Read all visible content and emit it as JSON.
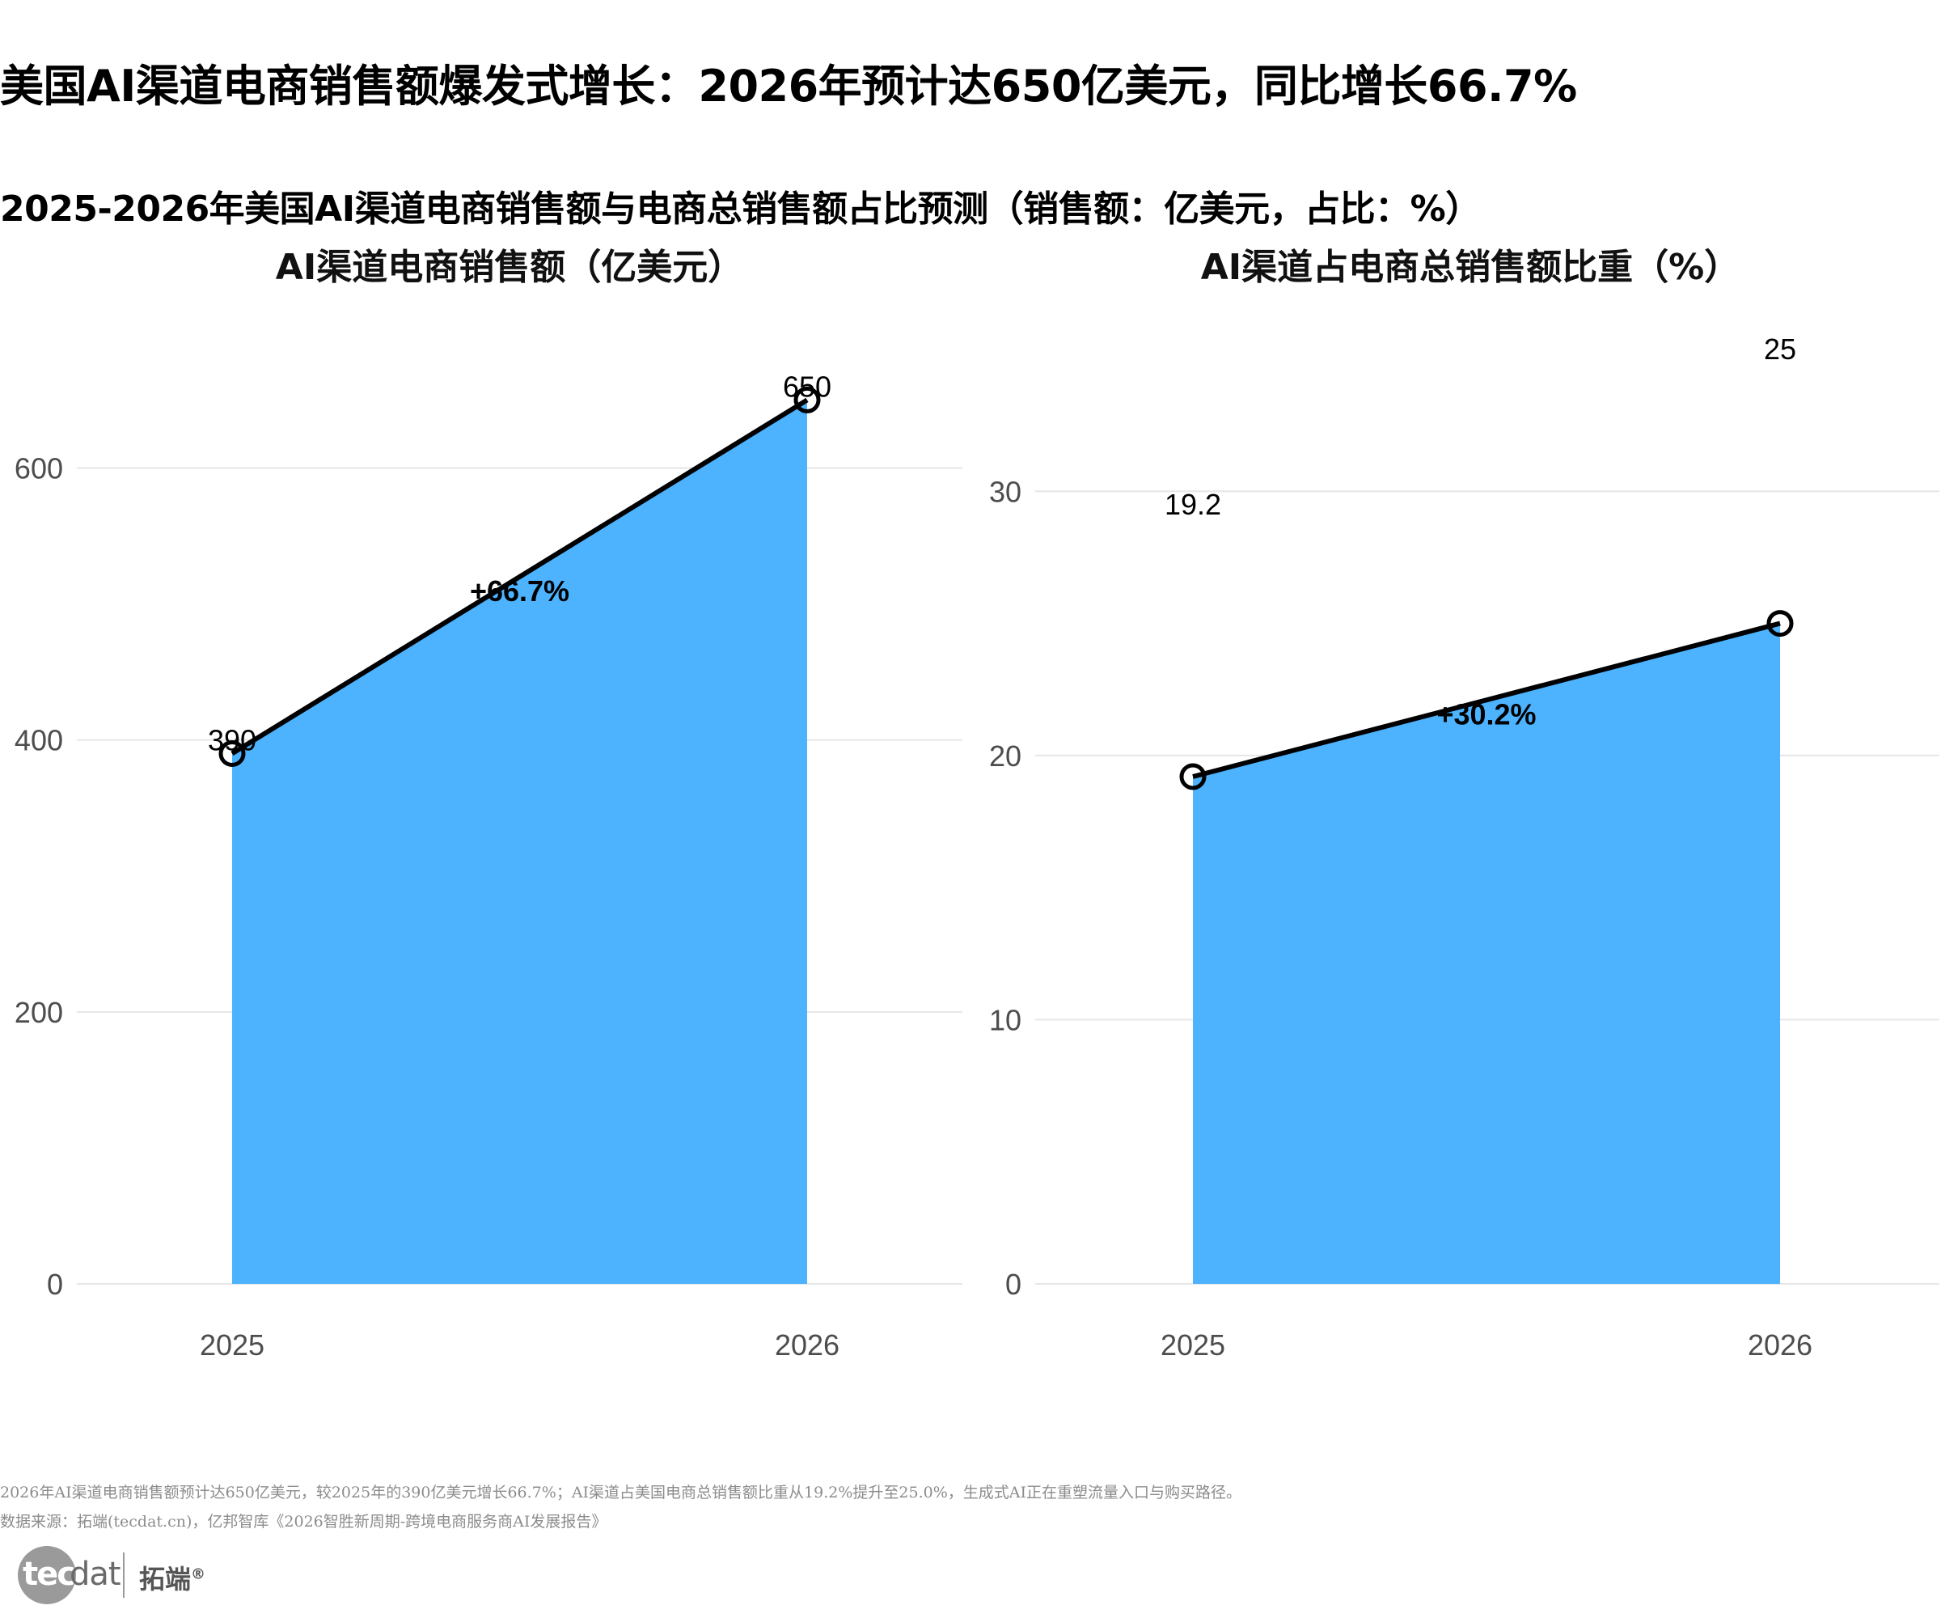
{
  "header": {
    "title": "美国AI渠道电商销售额爆发式增长：2026年预计达650亿美元，同比增长66.7%",
    "subtitle": "2025-2026年美国AI渠道电商销售额与电商总销售额占比预测（销售额：亿美元，占比：%）"
  },
  "chart_data": [
    {
      "type": "area",
      "title": "AI渠道电商销售额（亿美元）",
      "x": [
        "2025",
        "2026"
      ],
      "values": [
        390,
        650
      ],
      "value_labels": [
        "390",
        "650"
      ],
      "ylim": [
        0,
        680
      ],
      "yticks": [
        0,
        200,
        400,
        600
      ],
      "growth_label": "+66.7%",
      "grid": true,
      "fill_color": "#4DB3FF",
      "line_color": "#000000"
    },
    {
      "type": "area",
      "title": "AI渠道占电商总销售额比重（%）",
      "x": [
        "2025",
        "2026"
      ],
      "values": [
        19.2,
        25.0
      ],
      "value_labels": [
        "19.2",
        "25"
      ],
      "ylim": [
        0,
        35
      ],
      "yticks": [
        0,
        10,
        20,
        30
      ],
      "growth_label": "+30.2%",
      "grid": true,
      "fill_color": "#4DB3FF",
      "line_color": "#000000"
    }
  ],
  "footer": {
    "note": "2026年AI渠道电商销售额预计达650亿美元，较2025年的390亿美元增长66.7%；AI渠道占美国电商总销售额比重从19.2%提升至25.0%，生成式AI正在重塑流量入口与购买路径。",
    "source": "数据来源：拓端(tecdat.cn)，亿邦智库《2026智胜新周期-跨境电商服务商AI发展报告》",
    "logo_text_left": "tec",
    "logo_text_right": "dat",
    "logo_cn": "拓端",
    "logo_reg": "®"
  }
}
